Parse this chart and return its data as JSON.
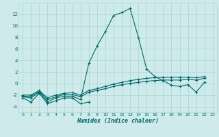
{
  "title": "",
  "xlabel": "Humidex (Indice chaleur)",
  "ylabel": "",
  "background_color": "#ceeaea",
  "grid_color": "#b0d8d8",
  "line_color": "#006868",
  "xlim": [
    -0.5,
    23.5
  ],
  "ylim": [
    -5,
    14
  ],
  "xticks": [
    0,
    1,
    2,
    3,
    4,
    5,
    6,
    7,
    8,
    9,
    10,
    11,
    12,
    13,
    14,
    15,
    16,
    17,
    18,
    19,
    20,
    21,
    22,
    23
  ],
  "yticks": [
    -4,
    -2,
    0,
    2,
    4,
    6,
    8,
    10,
    12
  ],
  "series": [
    {
      "x": [
        0,
        1,
        2,
        3,
        4,
        5,
        6,
        7,
        8
      ],
      "y": [
        -2.5,
        -3.2,
        -1.7,
        -3.5,
        -3.0,
        -2.5,
        -2.5,
        -3.5,
        -3.2
      ]
    },
    {
      "x": [
        0,
        1,
        2,
        3,
        4,
        5,
        6,
        7,
        8,
        9,
        10,
        11,
        12,
        13,
        14,
        15,
        16,
        17,
        18,
        19,
        20,
        21,
        22
      ],
      "y": [
        -2.3,
        -2.5,
        -1.5,
        -3.2,
        -2.5,
        -2.2,
        -2.2,
        -2.8,
        3.5,
        6.5,
        9.0,
        11.8,
        12.3,
        13.0,
        8.0,
        2.5,
        1.2,
        0.5,
        -0.3,
        -0.5,
        -0.2,
        -1.5,
        0.2
      ]
    },
    {
      "x": [
        0,
        1,
        2,
        3,
        4,
        5,
        6,
        7,
        8,
        9,
        10,
        11,
        12,
        13,
        14,
        15,
        16,
        17,
        18,
        19,
        20,
        21,
        22
      ],
      "y": [
        -2.2,
        -2.2,
        -1.4,
        -2.8,
        -2.3,
        -1.9,
        -1.9,
        -2.3,
        -1.5,
        -1.2,
        -0.9,
        -0.5,
        -0.2,
        0.0,
        0.2,
        0.4,
        0.5,
        0.6,
        0.6,
        0.6,
        0.7,
        0.6,
        0.9
      ]
    },
    {
      "x": [
        0,
        1,
        2,
        3,
        4,
        5,
        6,
        7,
        8,
        9,
        10,
        11,
        12,
        13,
        14,
        15,
        16,
        17,
        18,
        19,
        20,
        21,
        22
      ],
      "y": [
        -2.0,
        -2.0,
        -1.2,
        -2.5,
        -2.0,
        -1.7,
        -1.6,
        -2.0,
        -1.2,
        -0.9,
        -0.5,
        -0.1,
        0.2,
        0.5,
        0.7,
        0.9,
        1.0,
        1.1,
        1.1,
        1.1,
        1.1,
        1.0,
        1.2
      ]
    }
  ]
}
